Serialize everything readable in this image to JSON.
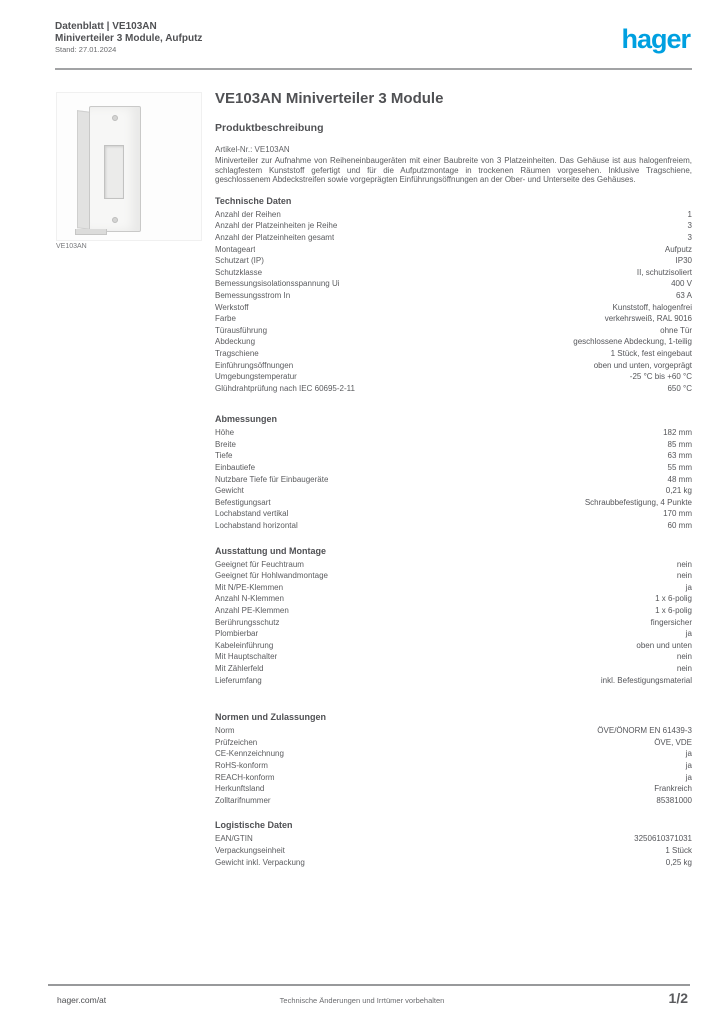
{
  "brand": {
    "logo_text": "hager",
    "logo_color": "#00a0e0"
  },
  "header": {
    "line1": "Datenblatt | VE103AN",
    "line2": "Miniverteiler 3 Module, Aufputz",
    "line3": "Stand: 27.01.2024"
  },
  "product": {
    "image_caption": "VE103AN",
    "image_alt": "Miniverteiler Aufputz, 1-reihig",
    "title": "VE103AN Miniverteiler 3 Module",
    "description_heading": "Produktbeschreibung",
    "article_line": "Artikel-Nr.: VE103AN",
    "description": "Miniverteiler zur Aufnahme von Reiheneinbaugeräten mit einer Baubreite von 3 Platzeinheiten. Das Gehäuse ist aus halogenfreiem, schlagfestem Kunststoff gefertigt und für die Aufputzmontage in trockenen Räumen vorgesehen. Inklusive Tragschiene, geschlossenem Abdeckstreifen sowie vorgeprägten Einführungsöffnungen an der Ober- und Unterseite des Gehäuses."
  },
  "sections": [
    {
      "heading": "Technische Daten",
      "rows": [
        {
          "label": "Anzahl der Reihen",
          "value": "1"
        },
        {
          "label": "Anzahl der Platzeinheiten je Reihe",
          "value": "3"
        },
        {
          "label": "Anzahl der Platzeinheiten gesamt",
          "value": "3"
        },
        {
          "label": "Montageart",
          "value": "Aufputz"
        },
        {
          "label": "Schutzart (IP)",
          "value": "IP30"
        },
        {
          "label": "Schutzklasse",
          "value": "II, schutzisoliert"
        },
        {
          "label": "Bemessungsisolationsspannung Ui",
          "value": "400 V"
        },
        {
          "label": "Bemessungsstrom In",
          "value": "63 A"
        },
        {
          "label": "Werkstoff",
          "value": "Kunststoff, halogenfrei"
        },
        {
          "label": "Farbe",
          "value": "verkehrsweiß, RAL 9016"
        },
        {
          "label": "Türausführung",
          "value": "ohne Tür"
        },
        {
          "label": "Abdeckung",
          "value": "geschlossene Abdeckung, 1-teilig"
        },
        {
          "label": "Tragschiene",
          "value": "1 Stück, fest eingebaut"
        },
        {
          "label": "Einführungsöffnungen",
          "value": "oben und unten, vorgeprägt"
        },
        {
          "label": "Umgebungstemperatur",
          "value": "-25 °C bis +60 °C"
        },
        {
          "label": "Glühdrahtprüfung nach IEC 60695-2-11",
          "value": "650 °C"
        }
      ]
    },
    {
      "heading": "Abmessungen",
      "rows": [
        {
          "label": "Höhe",
          "value": "182 mm"
        },
        {
          "label": "Breite",
          "value": "85 mm"
        },
        {
          "label": "Tiefe",
          "value": "63 mm"
        },
        {
          "label": "Einbautiefe",
          "value": "55 mm"
        },
        {
          "label": "Nutzbare Tiefe für Einbaugeräte",
          "value": "48 mm"
        },
        {
          "label": "Gewicht",
          "value": "0,21 kg"
        },
        {
          "label": "Befestigungsart",
          "value": "Schraubbefestigung, 4 Punkte"
        },
        {
          "label": "Lochabstand vertikal",
          "value": "170 mm"
        },
        {
          "label": "Lochabstand horizontal",
          "value": "60 mm"
        }
      ]
    },
    {
      "heading": "Ausstattung und Montage",
      "rows": [
        {
          "label": "Geeignet für Feuchtraum",
          "value": "nein"
        },
        {
          "label": "Geeignet für Hohlwandmontage",
          "value": "nein"
        },
        {
          "label": "Mit N/PE-Klemmen",
          "value": "ja"
        },
        {
          "label": "Anzahl N-Klemmen",
          "value": "1 x 6-polig"
        },
        {
          "label": "Anzahl PE-Klemmen",
          "value": "1 x 6-polig"
        },
        {
          "label": "Berührungsschutz",
          "value": "fingersicher"
        },
        {
          "label": "Plombierbar",
          "value": "ja"
        },
        {
          "label": "Kabeleinführung",
          "value": "oben und unten"
        },
        {
          "label": "Mit Hauptschalter",
          "value": "nein"
        },
        {
          "label": "Mit Zählerfeld",
          "value": "nein"
        },
        {
          "label": "Lieferumfang",
          "value": "inkl. Befestigungsmaterial"
        }
      ]
    },
    {
      "heading": "Normen und Zulassungen",
      "rows": [
        {
          "label": "Norm",
          "value": "ÖVE/ÖNORM EN 61439-3"
        },
        {
          "label": "Prüfzeichen",
          "value": "ÖVE, VDE"
        },
        {
          "label": "CE-Kennzeichnung",
          "value": "ja"
        },
        {
          "label": "RoHS-konform",
          "value": "ja"
        },
        {
          "label": "REACH-konform",
          "value": "ja"
        },
        {
          "label": "Herkunftsland",
          "value": "Frankreich"
        },
        {
          "label": "Zolltarifnummer",
          "value": "85381000"
        }
      ]
    },
    {
      "heading": "Logistische Daten",
      "rows": [
        {
          "label": "EAN/GTIN",
          "value": "3250610371031"
        },
        {
          "label": "Verpackungseinheit",
          "value": "1 Stück"
        },
        {
          "label": "Gewicht inkl. Verpackung",
          "value": "0,25 kg"
        }
      ]
    }
  ],
  "footer": {
    "left": "hager.com/at",
    "center": "Technische Änderungen und Irrtümer vorbehalten",
    "right": "1/2"
  }
}
